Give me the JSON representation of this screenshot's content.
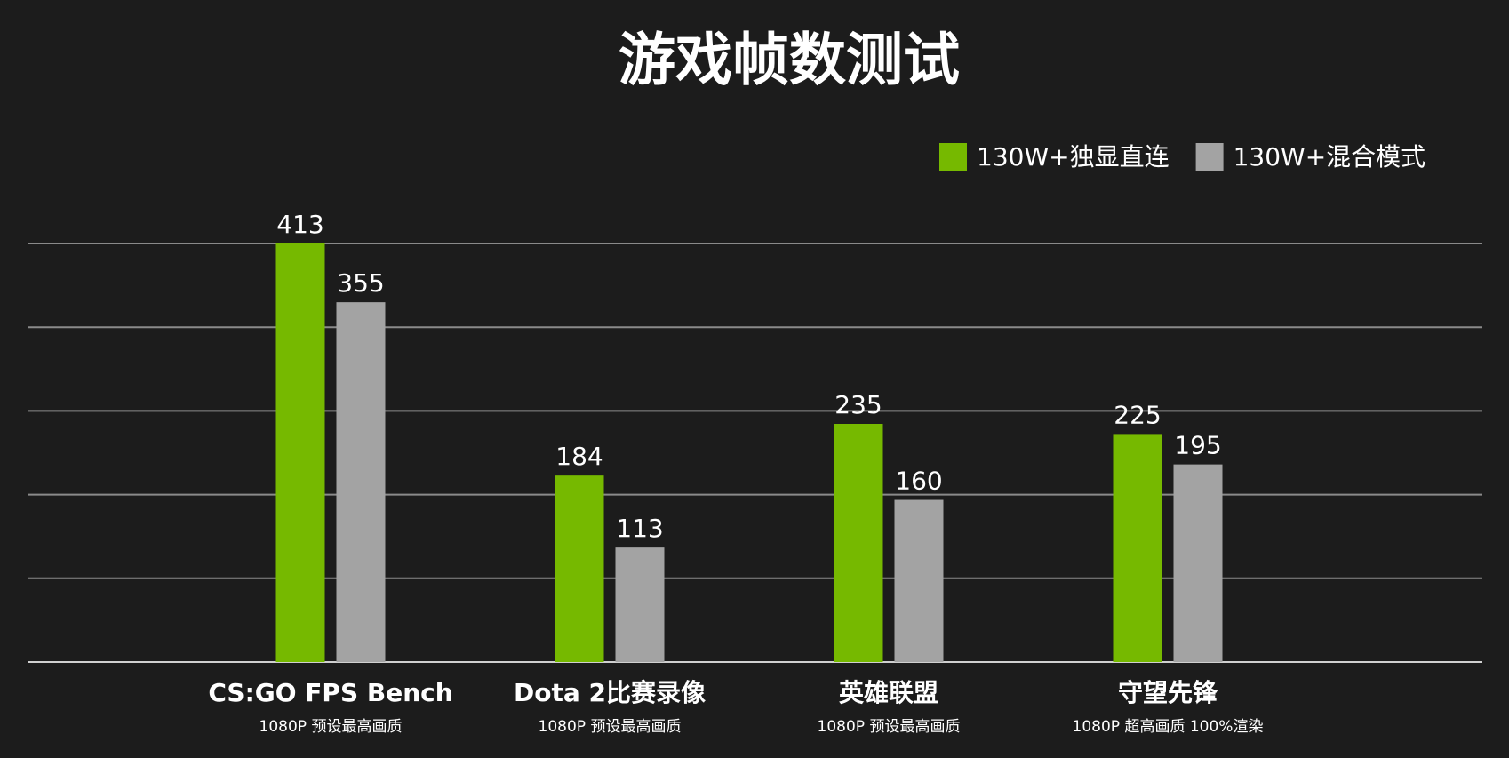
{
  "chart_data": {
    "type": "bar",
    "title": "游戏帧数测试",
    "categories": [
      "CS:GO FPS Bench",
      "Dota 2比赛录像",
      "英雄联盟",
      "守望先锋"
    ],
    "category_notes": [
      "1080P 预设最高画质",
      "1080P 预设最高画质",
      "1080P 预设最高画质",
      "1080P 超高画质 100%渲染"
    ],
    "series": [
      {
        "name": "130W+独显直连",
        "color": "#76b900",
        "values": [
          413,
          184,
          235,
          225
        ]
      },
      {
        "name": "130W+混合模式",
        "color": "#a3a3a3",
        "values": [
          355,
          113,
          160,
          195
        ]
      }
    ],
    "ylim": [
      0,
      413
    ],
    "yticks": [
      0,
      82.6,
      165.2,
      247.8,
      330.4,
      413
    ],
    "grid": true,
    "legend": "top-right"
  }
}
